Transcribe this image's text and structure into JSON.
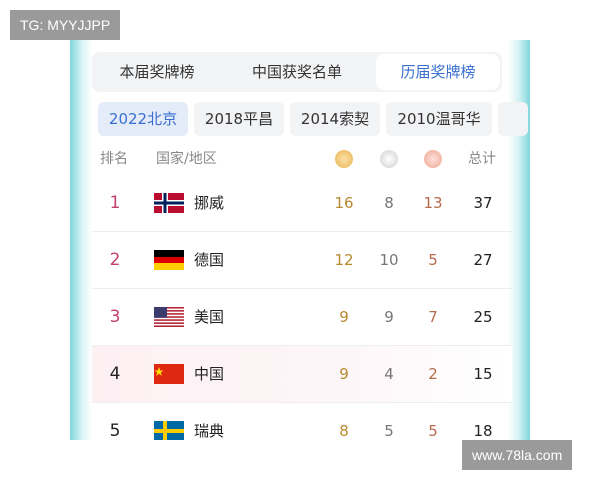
{
  "watermarks": {
    "top": "TG: MYYJJPP",
    "bottom": "www.78la.com"
  },
  "tabs": [
    "本届奖牌榜",
    "中国获奖名单",
    "历届奖牌榜"
  ],
  "years": [
    "2022北京",
    "2018平昌",
    "2014索契",
    "2010温哥华"
  ],
  "table": {
    "headers": {
      "rank": "排名",
      "country": "国家/地区",
      "total": "总计"
    },
    "rows": [
      {
        "rank": 1,
        "country": "挪威",
        "gold": 16,
        "silver": 8,
        "bronze": 13,
        "total": 37
      },
      {
        "rank": 2,
        "country": "德国",
        "gold": 12,
        "silver": 10,
        "bronze": 5,
        "total": 27
      },
      {
        "rank": 3,
        "country": "美国",
        "gold": 9,
        "silver": 9,
        "bronze": 7,
        "total": 25
      },
      {
        "rank": 4,
        "country": "中国",
        "gold": 9,
        "silver": 4,
        "bronze": 2,
        "total": 15
      },
      {
        "rank": 5,
        "country": "瑞典",
        "gold": 8,
        "silver": 5,
        "bronze": 5,
        "total": 18
      }
    ]
  }
}
